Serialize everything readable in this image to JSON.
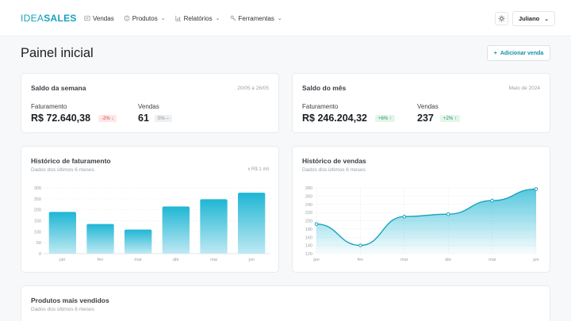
{
  "header": {
    "logo_thin": "IDEA",
    "logo_bold": "SALES",
    "nav": [
      {
        "label": "Vendas",
        "icon": "sales-icon"
      },
      {
        "label": "Produtos",
        "icon": "box-icon",
        "has_menu": true
      },
      {
        "label": "Relatórios",
        "icon": "report-icon",
        "has_menu": true
      },
      {
        "label": "Ferramentas",
        "icon": "tools-icon",
        "has_menu": true
      }
    ],
    "user": "Juliano",
    "theme_icon": "sun-icon"
  },
  "page": {
    "title": "Painel inicial",
    "add_button": "Adicionar venda"
  },
  "week_card": {
    "title": "Saldo da semana",
    "date": "20/05 a 26/05",
    "revenue_label": "Faturamento",
    "revenue_value": "R$ 72.640,38",
    "revenue_badge": "-2% ↓",
    "sales_label": "Vendas",
    "sales_value": "61",
    "sales_badge": "0% –"
  },
  "month_card": {
    "title": "Saldo do mês",
    "date": "Maio de 2024",
    "revenue_label": "Faturamento",
    "revenue_value": "R$ 246.204,32",
    "revenue_badge": "+6% ↑",
    "sales_label": "Vendas",
    "sales_value": "237",
    "sales_badge": "+2% ↑"
  },
  "revenue_chart": {
    "title": "Histórico de faturamento",
    "subtitle": "Dados dos últimos 6 meses",
    "unit_note": "x R$ 1 mil"
  },
  "sales_chart": {
    "title": "Histórico de vendas",
    "subtitle": "Dados dos últimos 6 meses"
  },
  "top_products": {
    "title": "Produtos mais vendidos",
    "subtitle": "Dados dos últimos 6 meses"
  },
  "colors": {
    "accent": "#17a2bd",
    "bar_top": "#1fb6d4",
    "bar_bottom": "#bfe9f3",
    "line": "#1aa3bf"
  },
  "chart_data": [
    {
      "type": "bar",
      "categories": [
        "jan",
        "fev",
        "mar",
        "abr",
        "mai",
        "jun"
      ],
      "values": [
        190,
        135,
        110,
        215,
        248,
        278
      ],
      "ylim": [
        0,
        300
      ],
      "yticks": [
        0,
        50,
        100,
        150,
        200,
        250,
        300
      ],
      "grid": true
    },
    {
      "type": "area",
      "categories": [
        "jan",
        "fev",
        "mar",
        "abr",
        "mai",
        "jun"
      ],
      "values": [
        192,
        140,
        210,
        216,
        249,
        277
      ],
      "ylim": [
        120,
        280
      ],
      "yticks": [
        120,
        140,
        160,
        180,
        200,
        220,
        240,
        260,
        280
      ],
      "grid": true
    }
  ]
}
